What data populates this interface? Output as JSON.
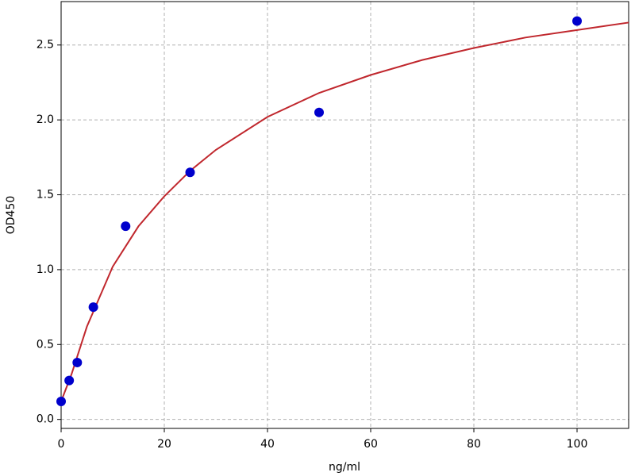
{
  "chart_data": {
    "type": "scatter",
    "xlabel": "ng/ml",
    "ylabel": "OD450",
    "xlim": [
      0,
      110
    ],
    "ylim": [
      -0.06,
      2.79
    ],
    "xticks": [
      0,
      20,
      40,
      60,
      80,
      100
    ],
    "yticks": [
      {
        "value": 0,
        "label": "0.0"
      },
      0.5,
      {
        "value": 1,
        "label": "1.0"
      },
      1.5,
      {
        "value": 2,
        "label": "2.0"
      },
      2.5
    ],
    "grid": true,
    "points": {
      "color": "#0000cc",
      "x": [
        0,
        1.5625,
        3.125,
        6.25,
        12.5,
        25,
        50,
        100
      ],
      "values": [
        0.12,
        0.26,
        0.38,
        0.75,
        1.29,
        1.65,
        2.05,
        2.66
      ]
    },
    "curve": {
      "color": "#c0272d",
      "x": [
        0,
        2,
        5,
        10,
        15,
        20,
        25,
        30,
        40,
        50,
        60,
        70,
        80,
        90,
        100,
        110
      ],
      "values": [
        0.12,
        0.3,
        0.62,
        1.02,
        1.29,
        1.49,
        1.66,
        1.8,
        2.02,
        2.18,
        2.3,
        2.4,
        2.48,
        2.55,
        2.6,
        2.65
      ]
    }
  }
}
